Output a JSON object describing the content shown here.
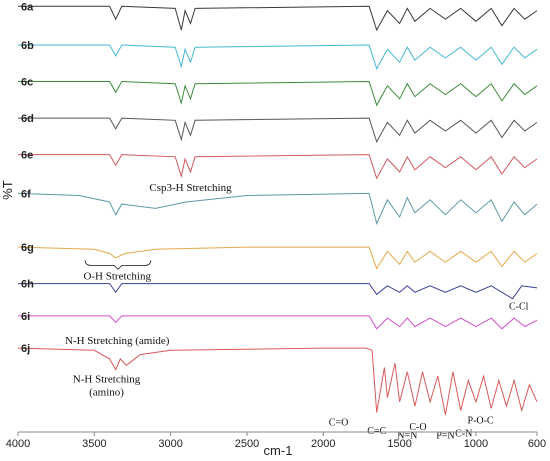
{
  "chart_data": {
    "type": "line",
    "title": "",
    "xlabel": "cm-1",
    "ylabel": "%T",
    "xlim": [
      4000,
      600
    ],
    "xreverse": true,
    "xticks": [
      4000,
      3500,
      3000,
      2500,
      2000,
      1500,
      1000,
      600
    ],
    "ylim": [
      0,
      10
    ],
    "grid": false,
    "legend": "none",
    "series": [
      {
        "name": "6a",
        "color": "#3a3a3a",
        "baseline": 9.45,
        "points": [
          [
            4000,
            9.9
          ],
          [
            3400,
            9.9
          ],
          [
            3360,
            9.6
          ],
          [
            3320,
            9.9
          ],
          [
            2970,
            9.85
          ],
          [
            2930,
            9.35
          ],
          [
            2905,
            9.8
          ],
          [
            2870,
            9.5
          ],
          [
            2840,
            9.85
          ],
          [
            1700,
            9.9
          ],
          [
            1650,
            9.35
          ],
          [
            1580,
            9.8
          ],
          [
            1500,
            9.5
          ],
          [
            1450,
            9.85
          ],
          [
            1400,
            9.55
          ],
          [
            1300,
            9.85
          ],
          [
            1200,
            9.6
          ],
          [
            1100,
            9.85
          ],
          [
            1000,
            9.55
          ],
          [
            900,
            9.85
          ],
          [
            830,
            9.45
          ],
          [
            750,
            9.85
          ],
          [
            680,
            9.6
          ],
          [
            600,
            9.8
          ]
        ]
      },
      {
        "name": "6b",
        "color": "#45b8d4",
        "baseline": 8.55,
        "points": [
          [
            4000,
            9.0
          ],
          [
            3400,
            9.0
          ],
          [
            3360,
            8.75
          ],
          [
            3320,
            9.0
          ],
          [
            2970,
            8.95
          ],
          [
            2930,
            8.5
          ],
          [
            2905,
            8.9
          ],
          [
            2870,
            8.6
          ],
          [
            2840,
            8.95
          ],
          [
            1700,
            9.0
          ],
          [
            1650,
            8.45
          ],
          [
            1580,
            8.9
          ],
          [
            1500,
            8.6
          ],
          [
            1450,
            8.95
          ],
          [
            1400,
            8.65
          ],
          [
            1300,
            8.95
          ],
          [
            1200,
            8.7
          ],
          [
            1100,
            8.95
          ],
          [
            1000,
            8.65
          ],
          [
            900,
            8.95
          ],
          [
            830,
            8.55
          ],
          [
            750,
            8.95
          ],
          [
            680,
            8.7
          ],
          [
            600,
            8.9
          ]
        ]
      },
      {
        "name": "6c",
        "color": "#3c8c3c",
        "baseline": 7.7,
        "points": [
          [
            4000,
            8.15
          ],
          [
            3400,
            8.15
          ],
          [
            3360,
            7.9
          ],
          [
            3320,
            8.15
          ],
          [
            2970,
            8.1
          ],
          [
            2930,
            7.65
          ],
          [
            2905,
            8.05
          ],
          [
            2870,
            7.75
          ],
          [
            2840,
            8.1
          ],
          [
            1700,
            8.15
          ],
          [
            1650,
            7.6
          ],
          [
            1580,
            8.05
          ],
          [
            1500,
            7.75
          ],
          [
            1450,
            8.1
          ],
          [
            1400,
            7.8
          ],
          [
            1300,
            8.1
          ],
          [
            1200,
            7.85
          ],
          [
            1100,
            8.1
          ],
          [
            1000,
            7.8
          ],
          [
            900,
            8.1
          ],
          [
            830,
            7.7
          ],
          [
            750,
            8.1
          ],
          [
            680,
            7.85
          ],
          [
            600,
            8.05
          ]
        ]
      },
      {
        "name": "6d",
        "color": "#555555",
        "baseline": 6.85,
        "points": [
          [
            4000,
            7.3
          ],
          [
            3400,
            7.3
          ],
          [
            3360,
            7.05
          ],
          [
            3320,
            7.3
          ],
          [
            2970,
            7.25
          ],
          [
            2930,
            6.8
          ],
          [
            2905,
            7.2
          ],
          [
            2870,
            6.9
          ],
          [
            2840,
            7.25
          ],
          [
            1700,
            7.3
          ],
          [
            1650,
            6.75
          ],
          [
            1580,
            7.2
          ],
          [
            1500,
            6.9
          ],
          [
            1450,
            7.25
          ],
          [
            1400,
            6.95
          ],
          [
            1300,
            7.25
          ],
          [
            1200,
            7.0
          ],
          [
            1100,
            7.25
          ],
          [
            1000,
            6.95
          ],
          [
            900,
            7.25
          ],
          [
            830,
            6.85
          ],
          [
            750,
            7.25
          ],
          [
            680,
            7.0
          ],
          [
            600,
            7.2
          ]
        ]
      },
      {
        "name": "6e",
        "color": "#d0595e",
        "baseline": 6.0,
        "points": [
          [
            4000,
            6.45
          ],
          [
            3400,
            6.45
          ],
          [
            3360,
            6.2
          ],
          [
            3320,
            6.45
          ],
          [
            2970,
            6.4
          ],
          [
            2930,
            5.95
          ],
          [
            2905,
            6.35
          ],
          [
            2870,
            6.05
          ],
          [
            2840,
            6.4
          ],
          [
            1700,
            6.45
          ],
          [
            1650,
            5.9
          ],
          [
            1580,
            6.35
          ],
          [
            1500,
            6.05
          ],
          [
            1450,
            6.4
          ],
          [
            1400,
            6.1
          ],
          [
            1300,
            6.4
          ],
          [
            1200,
            6.15
          ],
          [
            1100,
            6.4
          ],
          [
            1000,
            6.1
          ],
          [
            900,
            6.4
          ],
          [
            830,
            6.0
          ],
          [
            750,
            6.4
          ],
          [
            680,
            6.15
          ],
          [
            600,
            6.35
          ]
        ]
      },
      {
        "name": "6f",
        "color": "#5d9aa5",
        "baseline": 4.9,
        "points": [
          [
            4000,
            5.55
          ],
          [
            3600,
            5.5
          ],
          [
            3400,
            5.35
          ],
          [
            3360,
            5.05
          ],
          [
            3320,
            5.3
          ],
          [
            3100,
            5.2
          ],
          [
            2900,
            5.35
          ],
          [
            2500,
            5.5
          ],
          [
            1700,
            5.55
          ],
          [
            1650,
            4.85
          ],
          [
            1580,
            5.4
          ],
          [
            1500,
            5.0
          ],
          [
            1450,
            5.45
          ],
          [
            1400,
            5.1
          ],
          [
            1300,
            5.4
          ],
          [
            1200,
            5.05
          ],
          [
            1100,
            5.4
          ],
          [
            1000,
            5.1
          ],
          [
            900,
            5.4
          ],
          [
            830,
            4.9
          ],
          [
            750,
            5.35
          ],
          [
            680,
            5.05
          ],
          [
            600,
            5.3
          ]
        ]
      },
      {
        "name": "6g",
        "color": "#e3a94a",
        "baseline": 3.85,
        "points": [
          [
            4000,
            4.3
          ],
          [
            3500,
            4.25
          ],
          [
            3400,
            4.15
          ],
          [
            3360,
            4.05
          ],
          [
            3300,
            4.15
          ],
          [
            3100,
            4.25
          ],
          [
            2500,
            4.3
          ],
          [
            1700,
            4.3
          ],
          [
            1650,
            3.8
          ],
          [
            1580,
            4.2
          ],
          [
            1500,
            3.9
          ],
          [
            1450,
            4.2
          ],
          [
            1400,
            3.95
          ],
          [
            1300,
            4.2
          ],
          [
            1200,
            3.95
          ],
          [
            1100,
            4.2
          ],
          [
            1000,
            3.95
          ],
          [
            900,
            4.2
          ],
          [
            830,
            3.85
          ],
          [
            750,
            4.2
          ],
          [
            680,
            3.95
          ],
          [
            600,
            4.15
          ]
        ]
      },
      {
        "name": "6h",
        "color": "#3a3f9a",
        "baseline": 3.2,
        "points": [
          [
            4000,
            3.45
          ],
          [
            3400,
            3.45
          ],
          [
            3360,
            3.25
          ],
          [
            3320,
            3.45
          ],
          [
            1700,
            3.45
          ],
          [
            1650,
            3.2
          ],
          [
            1580,
            3.4
          ],
          [
            1500,
            3.25
          ],
          [
            1450,
            3.4
          ],
          [
            1400,
            3.25
          ],
          [
            1300,
            3.4
          ],
          [
            1200,
            3.25
          ],
          [
            1100,
            3.4
          ],
          [
            1000,
            3.25
          ],
          [
            900,
            3.4
          ],
          [
            760,
            3.1
          ],
          [
            700,
            3.4
          ],
          [
            600,
            3.35
          ]
        ]
      },
      {
        "name": "6i",
        "color": "#d24fc9",
        "baseline": 2.4,
        "points": [
          [
            4000,
            2.7
          ],
          [
            3400,
            2.7
          ],
          [
            3360,
            2.55
          ],
          [
            3320,
            2.7
          ],
          [
            1700,
            2.7
          ],
          [
            1650,
            2.4
          ],
          [
            1580,
            2.65
          ],
          [
            1500,
            2.45
          ],
          [
            1450,
            2.65
          ],
          [
            1400,
            2.45
          ],
          [
            1300,
            2.65
          ],
          [
            1200,
            2.45
          ],
          [
            1100,
            2.65
          ],
          [
            1000,
            2.45
          ],
          [
            900,
            2.65
          ],
          [
            830,
            2.4
          ],
          [
            750,
            2.65
          ],
          [
            680,
            2.45
          ],
          [
            600,
            2.6
          ]
        ]
      },
      {
        "name": "6j",
        "color": "#d85a5a",
        "baseline": 0.4,
        "points": [
          [
            4000,
            1.95
          ],
          [
            3500,
            1.9
          ],
          [
            3400,
            1.7
          ],
          [
            3360,
            1.45
          ],
          [
            3330,
            1.7
          ],
          [
            3290,
            1.55
          ],
          [
            3200,
            1.8
          ],
          [
            3000,
            1.9
          ],
          [
            2000,
            1.95
          ],
          [
            1720,
            1.95
          ],
          [
            1680,
            1.9
          ],
          [
            1650,
            0.45
          ],
          [
            1600,
            1.5
          ],
          [
            1580,
            0.8
          ],
          [
            1530,
            1.6
          ],
          [
            1500,
            0.7
          ],
          [
            1450,
            1.4
          ],
          [
            1400,
            0.6
          ],
          [
            1350,
            1.4
          ],
          [
            1300,
            0.7
          ],
          [
            1250,
            1.3
          ],
          [
            1200,
            0.4
          ],
          [
            1150,
            1.4
          ],
          [
            1100,
            0.5
          ],
          [
            1050,
            1.2
          ],
          [
            1000,
            0.7
          ],
          [
            950,
            1.3
          ],
          [
            900,
            0.55
          ],
          [
            850,
            1.2
          ],
          [
            800,
            0.6
          ],
          [
            750,
            1.2
          ],
          [
            700,
            0.5
          ],
          [
            650,
            1.1
          ],
          [
            600,
            0.7
          ]
        ]
      }
    ],
    "annotations": [
      {
        "text": "Csp3-H Stretching",
        "x": 2870,
        "y": 5.6
      },
      {
        "text": "O-H Stretching",
        "x": 3350,
        "y": 3.55,
        "bracket": [
          3560,
          3130
        ]
      },
      {
        "text": "N-H Stretching (amide)",
        "x": 3350,
        "y": 2.05
      },
      {
        "text": "N-H Stretching",
        "x": 3420,
        "y": 1.15
      },
      {
        "text": "(amino)",
        "x": 3420,
        "y": 0.85
      },
      {
        "text": "C-Cl",
        "x": 720,
        "y": 2.85
      },
      {
        "text": "C=O",
        "x": 1900,
        "y": 0.15
      },
      {
        "text": "C=C",
        "x": 1650,
        "y": -0.05
      },
      {
        "text": "N=N",
        "x": 1450,
        "y": -0.15
      },
      {
        "text": "C-O",
        "x": 1380,
        "y": 0.05
      },
      {
        "text": "P=N",
        "x": 1200,
        "y": -0.15
      },
      {
        "text": "C-N",
        "x": 1080,
        "y": -0.1
      },
      {
        "text": "P-O-C",
        "x": 970,
        "y": 0.2
      }
    ]
  }
}
